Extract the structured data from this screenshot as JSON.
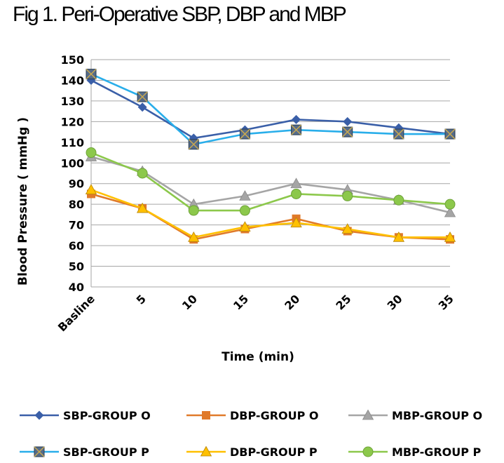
{
  "chart_data": {
    "type": "line",
    "title": "Fig 1.  Peri-Operative SBP, DBP and MBP",
    "xlabel": "Time (min)",
    "ylabel": "Blood Pressure ( mmHg )",
    "categories": [
      "Basline",
      "5",
      "10",
      "15",
      "20",
      "25",
      "30",
      "35"
    ],
    "ylim": [
      40,
      150
    ],
    "yticks": [
      40,
      50,
      60,
      70,
      80,
      90,
      100,
      110,
      120,
      130,
      140,
      150
    ],
    "grid": true,
    "legend_position": "bottom",
    "series": [
      {
        "name": "SBP-GROUP O",
        "values": [
          140,
          127,
          112,
          116,
          121,
          120,
          117,
          114
        ],
        "color": "#3A5FA8",
        "marker": "diamond"
      },
      {
        "name": "DBP-GROUP O",
        "values": [
          85,
          78,
          63,
          68,
          73,
          67,
          64,
          63
        ],
        "color": "#E07A2A",
        "marker": "square"
      },
      {
        "name": "MBP-GROUP O",
        "values": [
          103,
          96,
          80,
          84,
          90,
          87,
          82,
          76
        ],
        "color": "#A5A5A5",
        "marker": "triangle"
      },
      {
        "name": "SBP-GROUP P",
        "values": [
          143,
          132,
          109,
          114,
          116,
          115,
          114,
          114
        ],
        "color": "#29AEEA",
        "marker": "xsquare"
      },
      {
        "name": "DBP-GROUP P",
        "values": [
          87,
          78,
          64,
          69,
          71,
          68,
          64,
          64
        ],
        "color": "#FFC000",
        "marker": "triangle"
      },
      {
        "name": "MBP-GROUP P",
        "values": [
          105,
          95,
          77,
          77,
          85,
          84,
          82,
          80
        ],
        "color": "#8CC84B",
        "marker": "circle"
      }
    ]
  }
}
